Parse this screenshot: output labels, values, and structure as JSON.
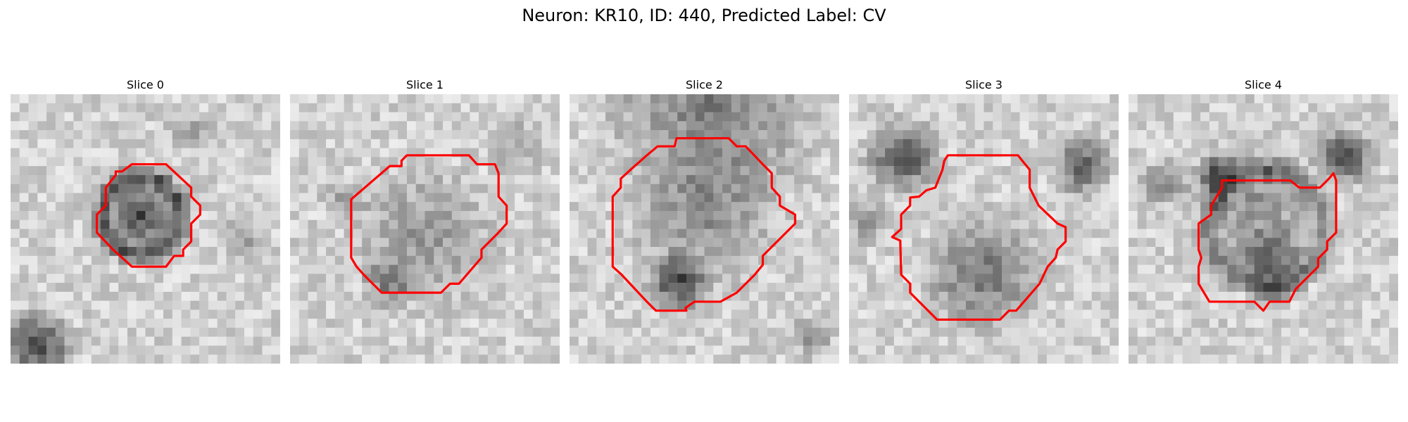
{
  "title": "Neuron: KR10, ID: 440, Predicted Label: CV",
  "contour_color": "#ff0000",
  "panels": [
    {
      "label": "Slice 0"
    },
    {
      "label": "Slice 1"
    },
    {
      "label": "Slice 2"
    },
    {
      "label": "Slice 3"
    },
    {
      "label": "Slice 4"
    }
  ]
}
